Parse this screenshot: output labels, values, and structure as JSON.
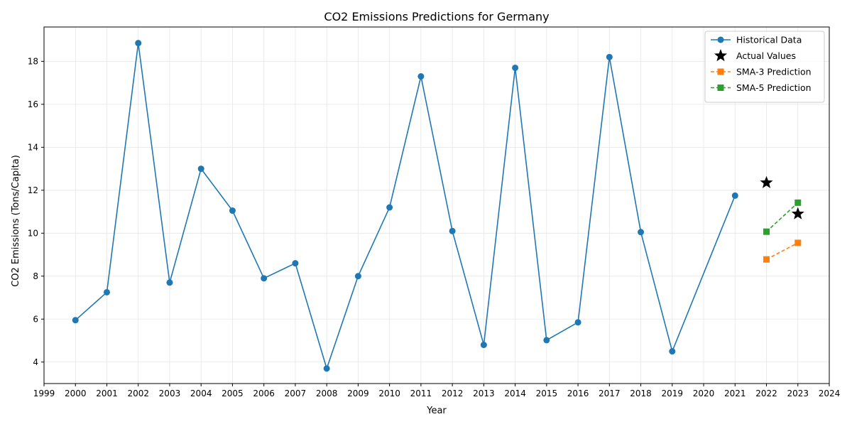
{
  "chart_data": {
    "type": "line",
    "title": "CO2 Emissions Predictions for Germany",
    "xlabel": "Year",
    "ylabel": "CO2 Emissions (Tons/Capita)",
    "xlim": [
      1999,
      2024
    ],
    "ylim": [
      3.0,
      19.6
    ],
    "xticks": [
      1999,
      2000,
      2001,
      2002,
      2003,
      2004,
      2005,
      2006,
      2007,
      2008,
      2009,
      2010,
      2011,
      2012,
      2013,
      2014,
      2015,
      2016,
      2017,
      2018,
      2019,
      2020,
      2021,
      2022,
      2023,
      2024
    ],
    "yticks": [
      4,
      6,
      8,
      10,
      12,
      14,
      16,
      18
    ],
    "grid": true,
    "legend_position": "top-right",
    "series": [
      {
        "name": "Historical Data",
        "style": "line-circle",
        "color": "#1f77b4",
        "x": [
          2000,
          2001,
          2002,
          2003,
          2004,
          2005,
          2006,
          2007,
          2008,
          2009,
          2010,
          2011,
          2012,
          2013,
          2014,
          2015,
          2016,
          2017,
          2018,
          2019,
          2021
        ],
        "values": [
          5.95,
          7.25,
          18.85,
          7.7,
          13.0,
          11.05,
          7.9,
          8.6,
          3.7,
          8.0,
          11.2,
          17.3,
          10.1,
          4.8,
          17.7,
          5.02,
          5.85,
          18.2,
          10.05,
          4.5,
          11.75
        ]
      },
      {
        "name": "Actual Values",
        "style": "star",
        "color": "#000000",
        "x": [
          2022,
          2023
        ],
        "values": [
          12.35,
          10.9
        ]
      },
      {
        "name": "SMA-3 Prediction",
        "style": "dashed-square",
        "color": "#ff7f0e",
        "x": [
          2022,
          2023
        ],
        "values": [
          8.78,
          9.55
        ]
      },
      {
        "name": "SMA-5 Prediction",
        "style": "dashed-square",
        "color": "#2ca02c",
        "x": [
          2022,
          2023
        ],
        "values": [
          10.07,
          11.42
        ]
      }
    ]
  }
}
